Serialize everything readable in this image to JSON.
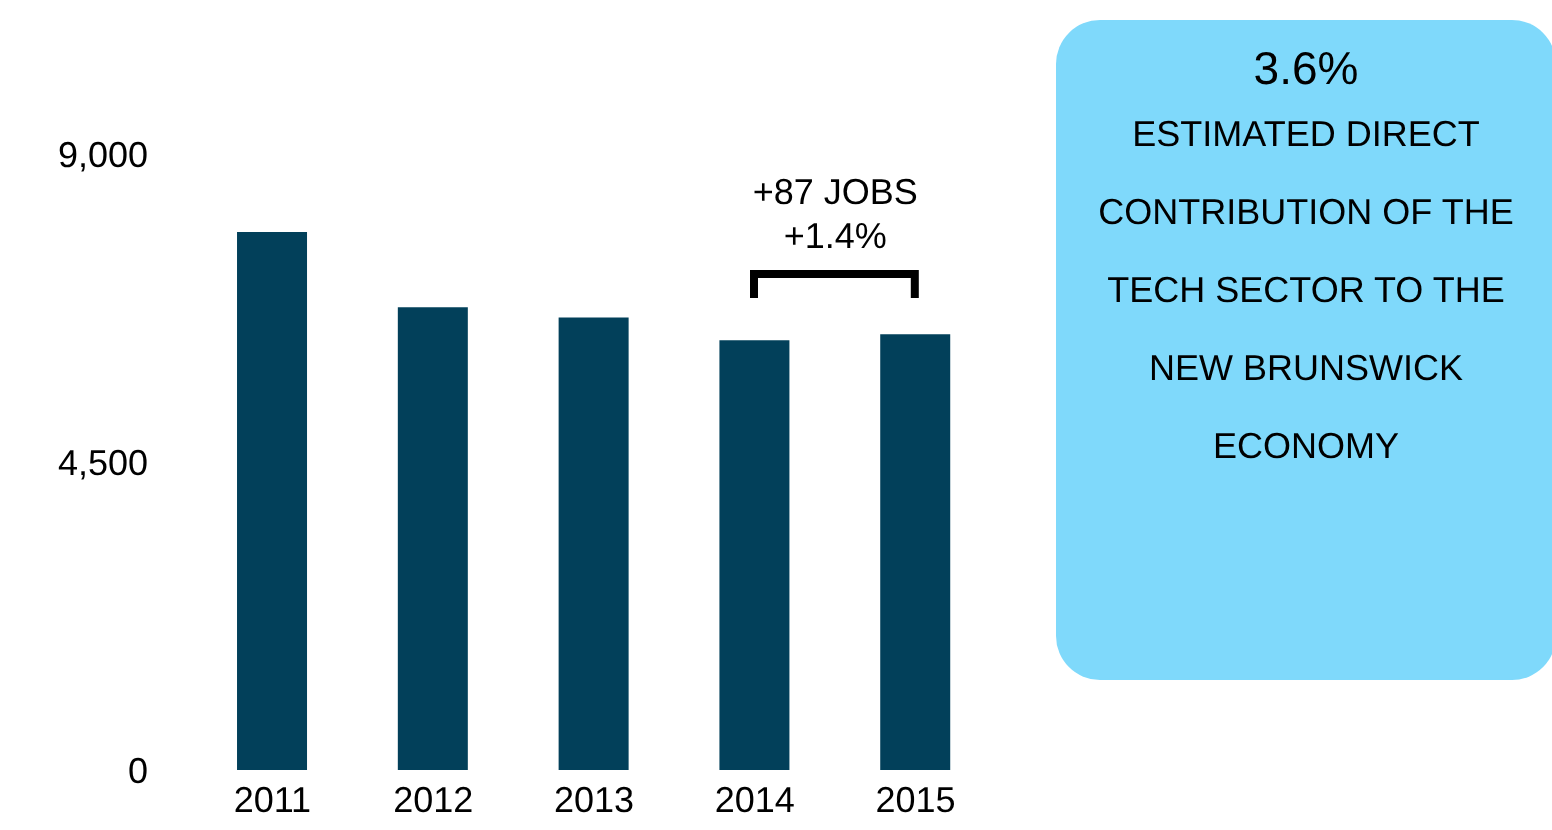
{
  "chart_data": {
    "type": "bar",
    "categories": [
      "2011",
      "2012",
      "2013",
      "2014",
      "2015"
    ],
    "values": [
      7860,
      6760,
      6610,
      6280,
      6367
    ],
    "color": "#02405a",
    "ylim": [
      0,
      9000
    ],
    "yticks": [
      {
        "value": 0,
        "label": "0"
      },
      {
        "value": 4500,
        "label": "4,500"
      },
      {
        "value": 9000,
        "label": "9,000"
      }
    ],
    "grid": false,
    "legend": false,
    "annotations": [
      "+87 JOBS",
      "+1.4%",
      "3.6%",
      "ESTIMATED DIRECT CONTRIBUTION OF THE TECH SECTOR TO THE NEW BRUNSWICK ECONOMY"
    ]
  }
}
